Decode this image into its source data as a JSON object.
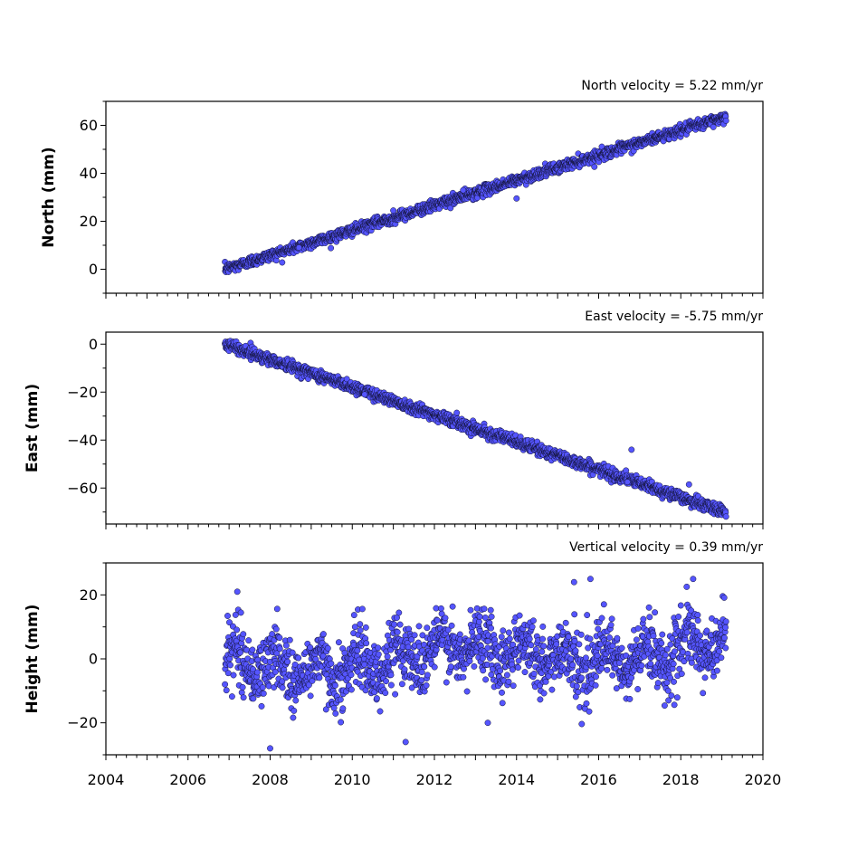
{
  "chart_data": [
    {
      "type": "scatter",
      "id": "north",
      "title": "North velocity = 5.22 mm/yr",
      "ylabel": "North (mm)",
      "xlim": [
        2004,
        2020
      ],
      "ylim": [
        -10,
        70
      ],
      "yticks": [
        0,
        20,
        40,
        60
      ],
      "show_xtick_labels": false,
      "trend": {
        "x_start": 2006.9,
        "x_end": 2019.1,
        "y_at_start": 0,
        "slope": 5.22,
        "scatter": 1.1
      },
      "outliers": [
        [
          2011.0,
          24.5
        ],
        [
          2012.7,
          33.0
        ],
        [
          2014.0,
          29.5
        ],
        [
          2008.7,
          9.0
        ]
      ],
      "series": [
        {
          "color": "#5555ff",
          "edgecolor": "#111133"
        }
      ]
    },
    {
      "type": "scatter",
      "id": "east",
      "title": "East velocity = -5.75 mm/yr",
      "ylabel": "East (mm)",
      "xlim": [
        2004,
        2020
      ],
      "ylim": [
        -75,
        5
      ],
      "yticks": [
        0,
        -20,
        -40,
        -60
      ],
      "show_xtick_labels": false,
      "trend": {
        "x_start": 2006.9,
        "x_end": 2019.1,
        "y_at_start": 0,
        "slope": -5.75,
        "scatter": 1.2
      },
      "outliers": [
        [
          2016.8,
          -44.0
        ],
        [
          2016.7,
          -57.5
        ],
        [
          2010.3,
          -21.0
        ],
        [
          2018.2,
          -58.5
        ]
      ],
      "series": [
        {
          "color": "#5555ff",
          "edgecolor": "#111133"
        }
      ]
    },
    {
      "type": "scatter",
      "id": "height",
      "title": "Vertical velocity = 0.39 mm/yr",
      "ylabel": "Height (mm)",
      "xlim": [
        2004,
        2020
      ],
      "ylim": [
        -30,
        30
      ],
      "yticks": [
        20,
        0,
        -20
      ],
      "xticks": [
        2004,
        2006,
        2008,
        2010,
        2012,
        2014,
        2016,
        2018,
        2020
      ],
      "show_xtick_labels": true,
      "trend": {
        "x_start": 2006.9,
        "x_end": 2019.1,
        "y_at_start": 0,
        "slope": 0.39,
        "scatter": 5.0
      },
      "outliers": [
        [
          2008.0,
          -28.0
        ],
        [
          2011.3,
          -26.0
        ],
        [
          2013.3,
          -20.0
        ],
        [
          2007.2,
          21.0
        ],
        [
          2015.8,
          25.0
        ],
        [
          2018.3,
          25.0
        ],
        [
          2015.4,
          24.0
        ]
      ],
      "series": [
        {
          "color": "#5555ff",
          "edgecolor": "#111133"
        }
      ]
    }
  ]
}
